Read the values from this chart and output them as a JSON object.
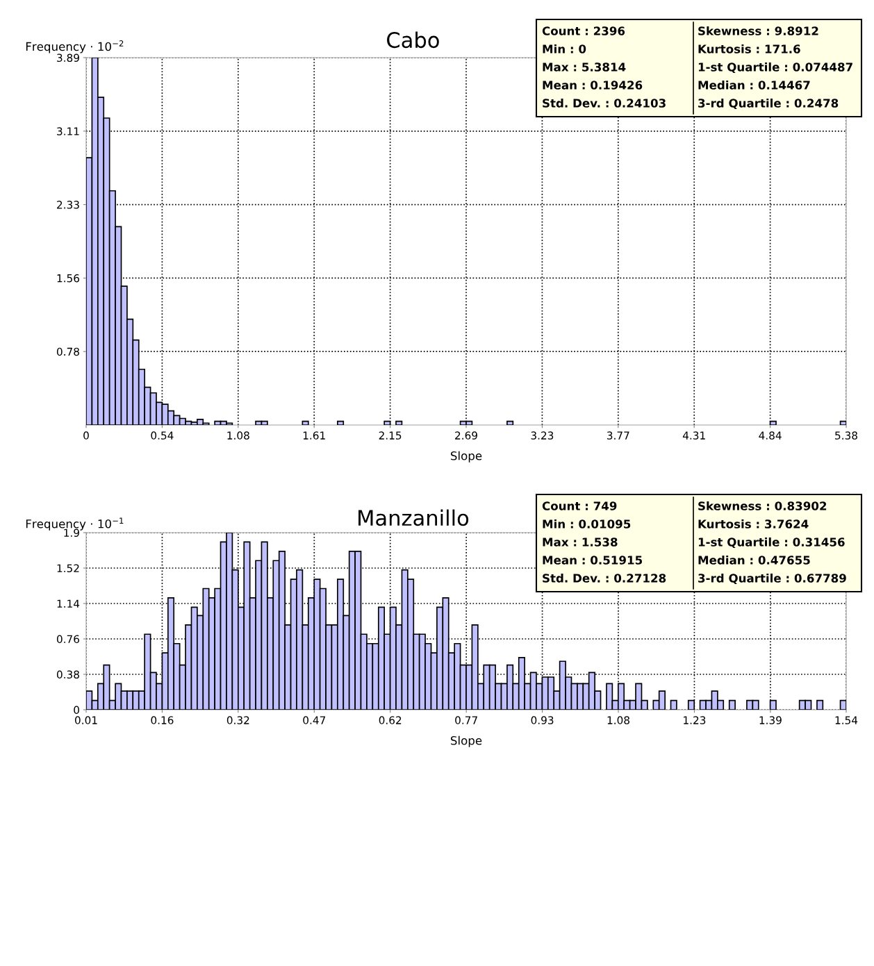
{
  "chart_data": [
    {
      "type": "histogram",
      "title": "Cabo",
      "xlabel": "Slope",
      "ylabel": "Frequency · 10$^{−2}$",
      "color": "#c0c0ff",
      "grid": true,
      "bins": [
        0,
        0.0414,
        0.0828,
        0.1242,
        0.1656,
        0.207,
        0.2484,
        0.2898,
        0.3312,
        0.3726,
        0.414,
        0.4553,
        0.4967,
        0.5381,
        0.5795,
        0.6209,
        0.6623,
        0.7037,
        0.7451,
        0.7865,
        0.8279,
        0.8693,
        0.9107,
        0.9521,
        0.9935,
        1.0349,
        1.0763,
        1.1177,
        1.1591,
        1.2005,
        1.2419,
        1.2832,
        1.3246,
        1.366,
        1.4074,
        1.4488,
        1.4902,
        1.5316,
        1.573,
        1.6144,
        1.6558,
        1.6972,
        1.7386,
        1.78,
        1.8214,
        1.8628,
        1.9042,
        1.9456,
        1.987,
        2.0284,
        2.0698,
        2.1111,
        2.1525,
        2.1939,
        2.2353,
        2.2767,
        2.3181,
        2.3595,
        2.4009,
        2.4423,
        2.4837,
        2.5251,
        2.5665,
        2.6079,
        2.6493,
        2.6907,
        2.7321,
        2.7735,
        2.8149,
        2.8563,
        2.8977,
        2.939,
        2.9804,
        3.0218,
        3.0632,
        3.1046,
        3.146,
        3.1874,
        3.2288,
        3.2702,
        3.3116,
        3.353,
        3.3944,
        3.4358,
        3.4772,
        3.5186,
        3.56,
        3.6014,
        3.6428,
        3.6842,
        3.7256,
        3.7669,
        3.8083,
        3.8497,
        3.8911,
        3.9325,
        3.9739,
        4.0153,
        4.0567,
        4.0981,
        4.1395,
        4.1809,
        4.2223,
        4.2637,
        4.3051,
        4.3465,
        4.3879,
        4.4293,
        4.4707,
        4.5121,
        4.5535,
        4.5948,
        4.6362,
        4.6776,
        4.719,
        4.7604,
        4.8018,
        4.8432,
        4.8846,
        4.926,
        4.9674,
        5.0088,
        5.0502,
        5.0916,
        5.133,
        5.1744,
        5.2158,
        5.2572,
        5.2986,
        5.34,
        5.3814
      ],
      "values": [
        2.83,
        3.89,
        3.47,
        3.25,
        2.48,
        2.1,
        1.47,
        1.12,
        0.9,
        0.59,
        0.4,
        0.34,
        0.24,
        0.22,
        0.15,
        0.1,
        0.07,
        0.04,
        0.03,
        0.06,
        0.02,
        0,
        0.04,
        0.04,
        0.02,
        0,
        0,
        0,
        0,
        0.04,
        0.04,
        0,
        0,
        0,
        0,
        0,
        0,
        0.04,
        0,
        0,
        0,
        0,
        0,
        0.04,
        0,
        0,
        0,
        0,
        0,
        0,
        0,
        0.04,
        0,
        0.04,
        0,
        0,
        0,
        0,
        0,
        0,
        0,
        0,
        0,
        0,
        0.04,
        0.04,
        0,
        0,
        0,
        0,
        0,
        0,
        0.04,
        0,
        0,
        0,
        0,
        0,
        0,
        0,
        0,
        0,
        0,
        0,
        0,
        0,
        0,
        0,
        0,
        0,
        0,
        0,
        0,
        0,
        0,
        0,
        0,
        0,
        0,
        0,
        0,
        0,
        0,
        0,
        0,
        0,
        0,
        0,
        0,
        0,
        0,
        0,
        0,
        0,
        0,
        0,
        0,
        0.04,
        0,
        0,
        0,
        0,
        0,
        0,
        0,
        0,
        0,
        0,
        0,
        0.04
      ],
      "xlim": [
        0,
        5.3814
      ],
      "ylim": [
        0,
        3.89
      ],
      "xticks": [
        0,
        {
          "value": 0.5381,
          "label": "0.54"
        },
        {
          "value": 1.0763,
          "label": "1.08"
        },
        {
          "value": 1.6144,
          "label": "1.61"
        },
        {
          "value": 2.1526,
          "label": "2.15"
        },
        {
          "value": 2.6907,
          "label": "2.69"
        },
        {
          "value": 3.2288,
          "label": "3.23"
        },
        {
          "value": 3.767,
          "label": "3.77"
        },
        {
          "value": 4.3051,
          "label": "4.31"
        },
        {
          "value": 4.8433,
          "label": "4.84"
        },
        {
          "value": 5.3814,
          "label": "5.38"
        }
      ],
      "yticks": [
        {
          "value": 0.778,
          "label": "0.78"
        },
        {
          "value": 1.556,
          "label": "1.56"
        },
        {
          "value": 2.334,
          "label": "2.33"
        },
        {
          "value": 3.112,
          "label": "3.11"
        },
        3.89
      ],
      "annotations": [
        "Count : 2396",
        "Min : 0",
        "Max : 5.3814",
        "Mean : 0.19426",
        "Std. Dev. : 0.24103",
        "Skewness : 9.8912",
        "Kurtosis : 171.6",
        "1-st Quartile : 0.074487",
        "Median : 0.14467",
        "3-rd Quartile : 0.2478"
      ]
    },
    {
      "type": "histogram",
      "title": "Manzanillo",
      "xlabel": "Slope",
      "ylabel": "Frequency · 10$^{−1}$",
      "color": "#c0c0ff",
      "grid": true,
      "bins": [
        0.01095,
        0.0227,
        0.0344,
        0.0462,
        0.0579,
        0.0697,
        0.0814,
        0.0932,
        0.1049,
        0.1167,
        0.1284,
        0.1402,
        0.1519,
        0.1637,
        0.1754,
        0.1871,
        0.1989,
        0.2106,
        0.2224,
        0.2341,
        0.2459,
        0.2576,
        0.2694,
        0.2811,
        0.2929,
        0.3046,
        0.3164,
        0.3281,
        0.3399,
        0.3516,
        0.3633,
        0.3751,
        0.3868,
        0.3986,
        0.4103,
        0.4221,
        0.4338,
        0.4456,
        0.4573,
        0.4691,
        0.4808,
        0.4926,
        0.5043,
        0.516,
        0.5278,
        0.5395,
        0.5513,
        0.563,
        0.5748,
        0.5865,
        0.5983,
        0.61,
        0.6218,
        0.6335,
        0.6453,
        0.657,
        0.6688,
        0.6805,
        0.6922,
        0.704,
        0.7157,
        0.7275,
        0.7392,
        0.751,
        0.7627,
        0.7745,
        0.7862,
        0.798,
        0.8097,
        0.8215,
        0.8332,
        0.845,
        0.8567,
        0.8684,
        0.8802,
        0.8919,
        0.9037,
        0.9154,
        0.9272,
        0.9389,
        0.9507,
        0.9624,
        0.9742,
        0.9859,
        0.9977,
        1.0094,
        1.0211,
        1.0329,
        1.0446,
        1.0564,
        1.0681,
        1.0799,
        1.0916,
        1.1034,
        1.1151,
        1.1269,
        1.1386,
        1.1504,
        1.1621,
        1.1739,
        1.1856,
        1.1973,
        1.2091,
        1.2208,
        1.2326,
        1.2443,
        1.2561,
        1.2678,
        1.2796,
        1.2913,
        1.3031,
        1.3148,
        1.3266,
        1.3383,
        1.3501,
        1.3618,
        1.3735,
        1.3853,
        1.397,
        1.4088,
        1.4205,
        1.4323,
        1.444,
        1.4558,
        1.4675,
        1.4793,
        1.491,
        1.5028,
        1.5145,
        1.5262,
        1.538
      ],
      "values": [
        0.2,
        0.1,
        0.28,
        0.48,
        0.1,
        0.28,
        0.2,
        0.2,
        0.2,
        0.2,
        0.81,
        0.4,
        0.28,
        0.61,
        1.2,
        0.71,
        0.48,
        0.91,
        1.1,
        1.01,
        1.3,
        1.2,
        1.3,
        1.8,
        1.9,
        1.5,
        1.1,
        1.8,
        1.2,
        1.6,
        1.8,
        1.2,
        1.6,
        1.7,
        0.91,
        1.4,
        1.5,
        0.91,
        1.2,
        1.4,
        1.3,
        0.91,
        0.91,
        1.4,
        1.01,
        1.7,
        1.7,
        0.81,
        0.71,
        0.71,
        1.1,
        0.81,
        1.1,
        0.91,
        1.5,
        1.4,
        0.81,
        0.81,
        0.71,
        0.61,
        1.1,
        1.2,
        0.61,
        0.71,
        0.48,
        0.48,
        0.91,
        0.28,
        0.48,
        0.48,
        0.28,
        0.28,
        0.48,
        0.28,
        0.56,
        0.28,
        0.4,
        0.28,
        0.35,
        0.35,
        0.2,
        0.52,
        0.35,
        0.28,
        0.28,
        0.28,
        0.4,
        0.2,
        0,
        0.28,
        0.1,
        0.28,
        0.1,
        0.1,
        0.28,
        0.1,
        0,
        0.1,
        0.2,
        0,
        0.1,
        0,
        0,
        0.1,
        0,
        0.1,
        0.1,
        0.2,
        0.1,
        0,
        0.1,
        0,
        0,
        0.1,
        0.1,
        0,
        0,
        0.1,
        0,
        0,
        0,
        0,
        0.1,
        0.1,
        0,
        0.1,
        0,
        0,
        0,
        0.1
      ],
      "xlim": [
        0.01095,
        1.538
      ],
      "ylim": [
        0,
        1.9
      ],
      "xticks": [
        {
          "value": 0.01095,
          "label": "0.01"
        },
        {
          "value": 0.1637,
          "label": "0.16"
        },
        {
          "value": 0.3164,
          "label": "0.32"
        },
        {
          "value": 0.4692,
          "label": "0.47"
        },
        {
          "value": 0.6219,
          "label": "0.62"
        },
        {
          "value": 0.7747,
          "label": "0.77"
        },
        {
          "value": 0.9274,
          "label": "0.93"
        },
        {
          "value": 1.0802,
          "label": "1.08"
        },
        {
          "value": 1.2329,
          "label": "1.23"
        },
        {
          "value": 1.3857,
          "label": "1.39"
        },
        {
          "value": 1.538,
          "label": "1.54"
        }
      ],
      "yticks": [
        0,
        0.38,
        0.76,
        1.14,
        1.52,
        1.9
      ],
      "annotations": [
        "Count : 749",
        "Min : 0.01095",
        "Max : 1.538",
        "Mean : 0.51915",
        "Std. Dev. : 0.27128",
        "Skewness : 0.83902",
        "Kurtosis : 3.7624",
        "1-st Quartile : 0.31456",
        "Median : 0.47655",
        "3-rd Quartile : 0.67789"
      ]
    }
  ]
}
